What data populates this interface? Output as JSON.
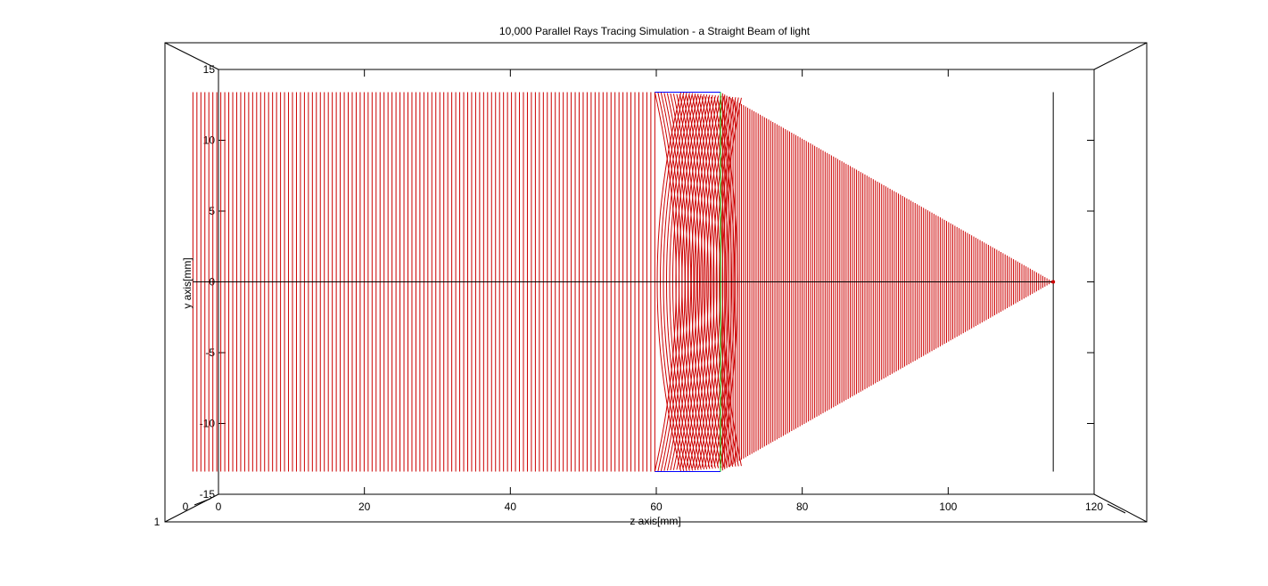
{
  "chart_data": {
    "type": "line",
    "title": "10,000 Parallel Rays Tracing Simulation - a Straight Beam of light",
    "xlabel": "z axis[mm]",
    "ylabel": "y axis[mm]",
    "xlim": [
      0,
      120
    ],
    "ylim": [
      -15,
      15
    ],
    "xticks": [
      "0",
      "20",
      "40",
      "60",
      "80",
      "100",
      "120"
    ],
    "yticks": [
      "15",
      "10",
      "5",
      "0",
      "-5",
      "-10",
      "-15"
    ],
    "xtick_values": [
      0,
      20,
      40,
      60,
      80,
      100,
      120
    ],
    "ytick_values": [
      15,
      10,
      5,
      0,
      -5,
      -10,
      -15
    ],
    "box_labels": [
      "0",
      "1"
    ],
    "grid": false,
    "view": "3d-box",
    "beam": {
      "color": "#cc0000",
      "ray_count_drawn": 117,
      "z_start": -3.5,
      "y_max": 13.4,
      "y_min": -13.4,
      "lens_front_z": 59.8,
      "lens_back_z": 68.8,
      "focus_z": 114.4,
      "focus_y": 0
    },
    "lens": {
      "front_z": 59.8,
      "back_z": 68.8,
      "half_height": 13.4,
      "front_color": "#0000ff",
      "back_color": "#00cc00"
    },
    "screen_plane": {
      "z": 114.4,
      "half_height": 13.4,
      "color": "#000000"
    },
    "optical_axis": {
      "y": 0,
      "z_from": -3.5,
      "z_to": 114.4,
      "color": "#000000"
    }
  }
}
